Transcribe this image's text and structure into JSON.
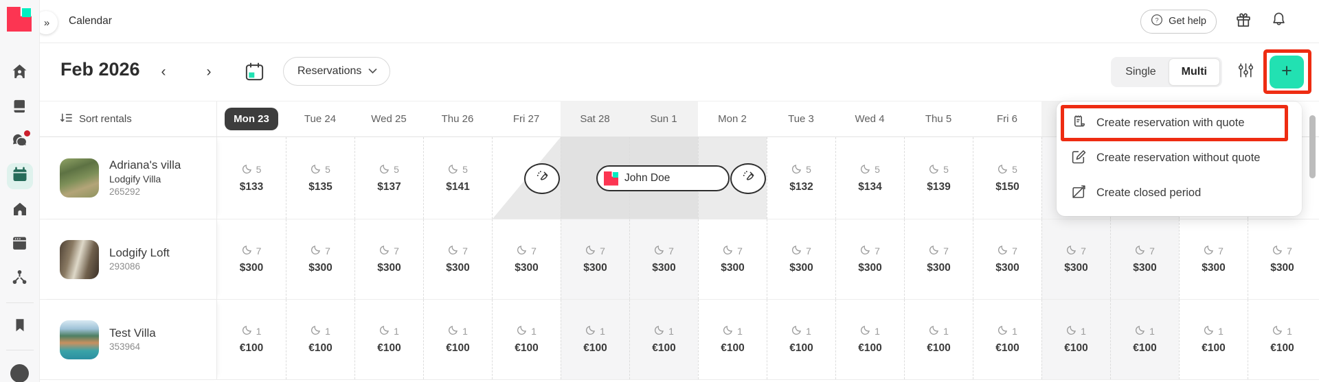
{
  "colors": {
    "annotation": "#ee2c12",
    "accent_teal": "#22e1b2",
    "logo_red": "#fc3552",
    "logo_teal": "#00eec0",
    "today_pill": "#3d3d3d"
  },
  "topbar": {
    "title": "Calendar",
    "get_help_label": "Get help",
    "collapse_glyph": "»"
  },
  "toolbar": {
    "month": "Feb 2026",
    "prev_glyph": "‹",
    "next_glyph": "›",
    "filter_label": "Reservations",
    "single_label": "Single",
    "multi_label": "Multi",
    "active_view": "Multi",
    "add_label": "+"
  },
  "sidebar": {
    "items": [
      {
        "name": "dashboard",
        "icon": "dashboard"
      },
      {
        "name": "guest-book",
        "icon": "book"
      },
      {
        "name": "inbox",
        "icon": "chat",
        "badge": true
      },
      {
        "name": "calendar",
        "icon": "calendar",
        "active": true
      },
      {
        "name": "rentals",
        "icon": "house"
      },
      {
        "name": "website",
        "icon": "browser"
      },
      {
        "name": "channels",
        "icon": "channels"
      },
      {
        "divider": true
      },
      {
        "name": "bookmarks",
        "icon": "bookmark"
      },
      {
        "divider": true
      },
      {
        "name": "account",
        "icon": "avatar"
      }
    ]
  },
  "rentals": {
    "sort_label": "Sort rentals"
  },
  "days": [
    {
      "label": "Mon 23",
      "today": true
    },
    {
      "label": "Tue 24"
    },
    {
      "label": "Wed 25"
    },
    {
      "label": "Thu 26"
    },
    {
      "label": "Fri 27"
    },
    {
      "label": "Sat 28",
      "weekend": true
    },
    {
      "label": "Sun 1",
      "weekend": true
    },
    {
      "label": "Mon 2"
    },
    {
      "label": "Tue 3"
    },
    {
      "label": "Wed 4"
    },
    {
      "label": "Thu 5"
    },
    {
      "label": "Fri 6"
    },
    {
      "label": "",
      "weekend": true
    },
    {
      "label": "",
      "weekend": true
    },
    {
      "label": ""
    },
    {
      "label": ""
    }
  ],
  "rows": [
    {
      "property": {
        "name": "Adriana's villa",
        "subtitle": "Lodgify Villa",
        "id": "265292",
        "thumb": "garden"
      },
      "reservation": {
        "guest": "John Doe"
      },
      "cells": [
        {
          "t": "price",
          "n": "5",
          "p": "$133"
        },
        {
          "t": "price",
          "n": "5",
          "p": "$135"
        },
        {
          "t": "price",
          "n": "5",
          "p": "$137"
        },
        {
          "t": "price",
          "n": "5",
          "p": "$141"
        },
        {
          "t": "checkin"
        },
        {
          "t": "reserved"
        },
        {
          "t": "reserved"
        },
        {
          "t": "reserved_light"
        },
        {
          "t": "price",
          "n": "5",
          "p": "$132"
        },
        {
          "t": "price",
          "n": "5",
          "p": "$134"
        },
        {
          "t": "price",
          "n": "5",
          "p": "$139"
        },
        {
          "t": "price",
          "n": "5",
          "p": "$150"
        },
        {
          "t": "blank"
        },
        {
          "t": "blank"
        },
        {
          "t": "blank"
        },
        {
          "t": "blank"
        }
      ]
    },
    {
      "property": {
        "name": "Lodgify Loft",
        "subtitle": "",
        "id": "293086",
        "thumb": "loft"
      },
      "cells": [
        {
          "t": "price",
          "n": "7",
          "p": "$300"
        },
        {
          "t": "price",
          "n": "7",
          "p": "$300"
        },
        {
          "t": "price",
          "n": "7",
          "p": "$300"
        },
        {
          "t": "price",
          "n": "7",
          "p": "$300"
        },
        {
          "t": "price",
          "n": "7",
          "p": "$300"
        },
        {
          "t": "price",
          "n": "7",
          "p": "$300"
        },
        {
          "t": "price",
          "n": "7",
          "p": "$300"
        },
        {
          "t": "price",
          "n": "7",
          "p": "$300"
        },
        {
          "t": "price",
          "n": "7",
          "p": "$300"
        },
        {
          "t": "price",
          "n": "7",
          "p": "$300"
        },
        {
          "t": "price",
          "n": "7",
          "p": "$300"
        },
        {
          "t": "price",
          "n": "7",
          "p": "$300"
        },
        {
          "t": "price",
          "n": "7",
          "p": "$300"
        },
        {
          "t": "price",
          "n": "7",
          "p": "$300"
        },
        {
          "t": "price",
          "n": "7",
          "p": "$300"
        },
        {
          "t": "price",
          "n": "7",
          "p": "$300"
        }
      ]
    },
    {
      "property": {
        "name": "Test Villa",
        "subtitle": "",
        "id": "353964",
        "thumb": "coast"
      },
      "cells": [
        {
          "t": "price",
          "n": "1",
          "p": "€100"
        },
        {
          "t": "price",
          "n": "1",
          "p": "€100"
        },
        {
          "t": "price",
          "n": "1",
          "p": "€100"
        },
        {
          "t": "price",
          "n": "1",
          "p": "€100"
        },
        {
          "t": "price",
          "n": "1",
          "p": "€100"
        },
        {
          "t": "price",
          "n": "1",
          "p": "€100"
        },
        {
          "t": "price",
          "n": "1",
          "p": "€100"
        },
        {
          "t": "price",
          "n": "1",
          "p": "€100"
        },
        {
          "t": "price",
          "n": "1",
          "p": "€100"
        },
        {
          "t": "price",
          "n": "1",
          "p": "€100"
        },
        {
          "t": "price",
          "n": "1",
          "p": "€100"
        },
        {
          "t": "price",
          "n": "1",
          "p": "€100"
        },
        {
          "t": "price",
          "n": "1",
          "p": "€100"
        },
        {
          "t": "price",
          "n": "1",
          "p": "€100"
        },
        {
          "t": "price",
          "n": "1",
          "p": "€100"
        },
        {
          "t": "price",
          "n": "1",
          "p": "€100"
        }
      ]
    }
  ],
  "menu": {
    "items": [
      {
        "label": "Create reservation with quote",
        "icon": "quote",
        "highlighted": true
      },
      {
        "label": "Create reservation without quote",
        "icon": "edit"
      },
      {
        "label": "Create closed period",
        "icon": "closed"
      }
    ]
  }
}
